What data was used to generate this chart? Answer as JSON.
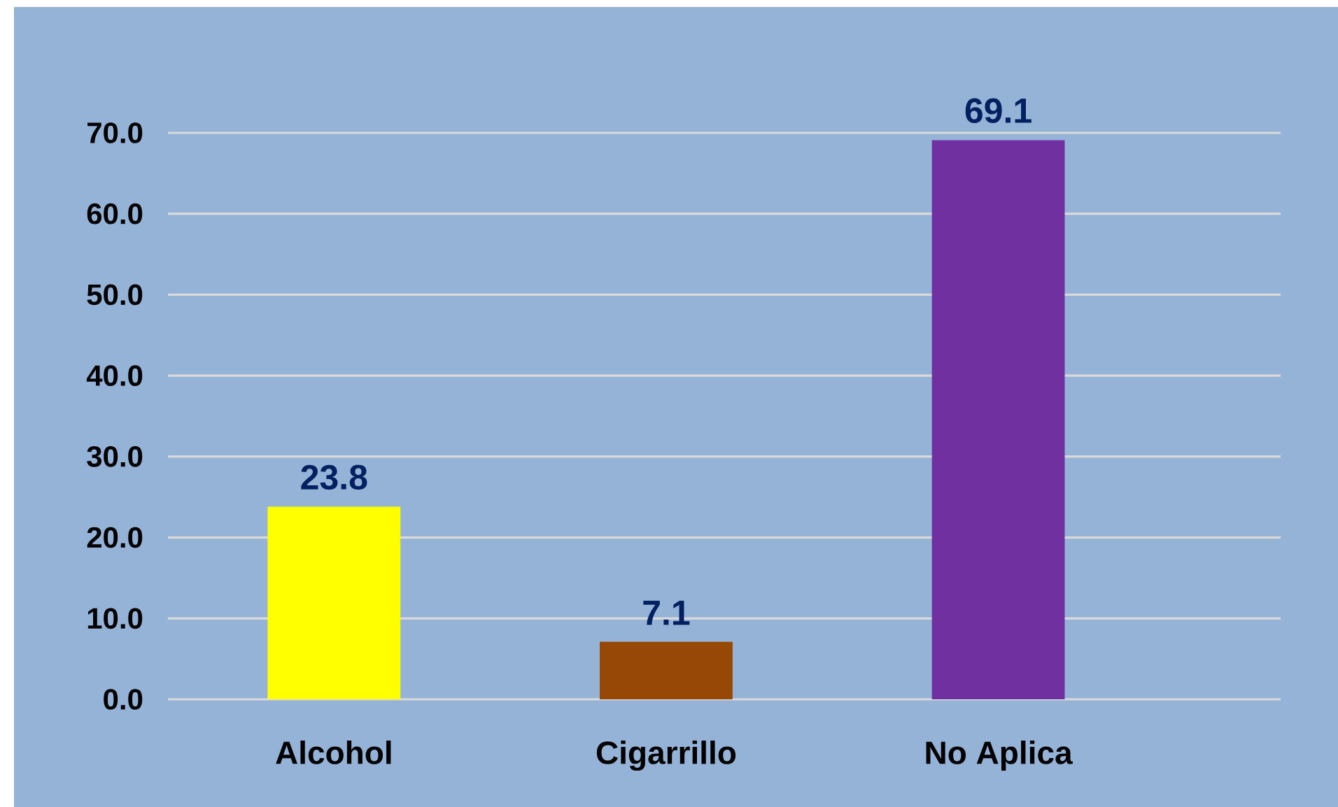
{
  "chart_data": {
    "type": "bar",
    "categories": [
      "Alcohol",
      "Cigarrillo",
      "No Aplica"
    ],
    "values": [
      23.8,
      7.1,
      69.1
    ],
    "colors": [
      "#ffff00",
      "#974706",
      "#7030a0"
    ],
    "data_labels": true,
    "ylim": [
      0,
      70
    ],
    "yticks": [
      {
        "value": 0,
        "label": "0.0"
      },
      {
        "value": 10,
        "label": "10.0"
      },
      {
        "value": 20,
        "label": "20.0"
      },
      {
        "value": 30,
        "label": "30.0"
      },
      {
        "value": 40,
        "label": "40.0"
      },
      {
        "value": 50,
        "label": "50.0"
      },
      {
        "value": 60,
        "label": "60.0"
      },
      {
        "value": 70,
        "label": "70.0"
      }
    ],
    "grid": "y"
  }
}
